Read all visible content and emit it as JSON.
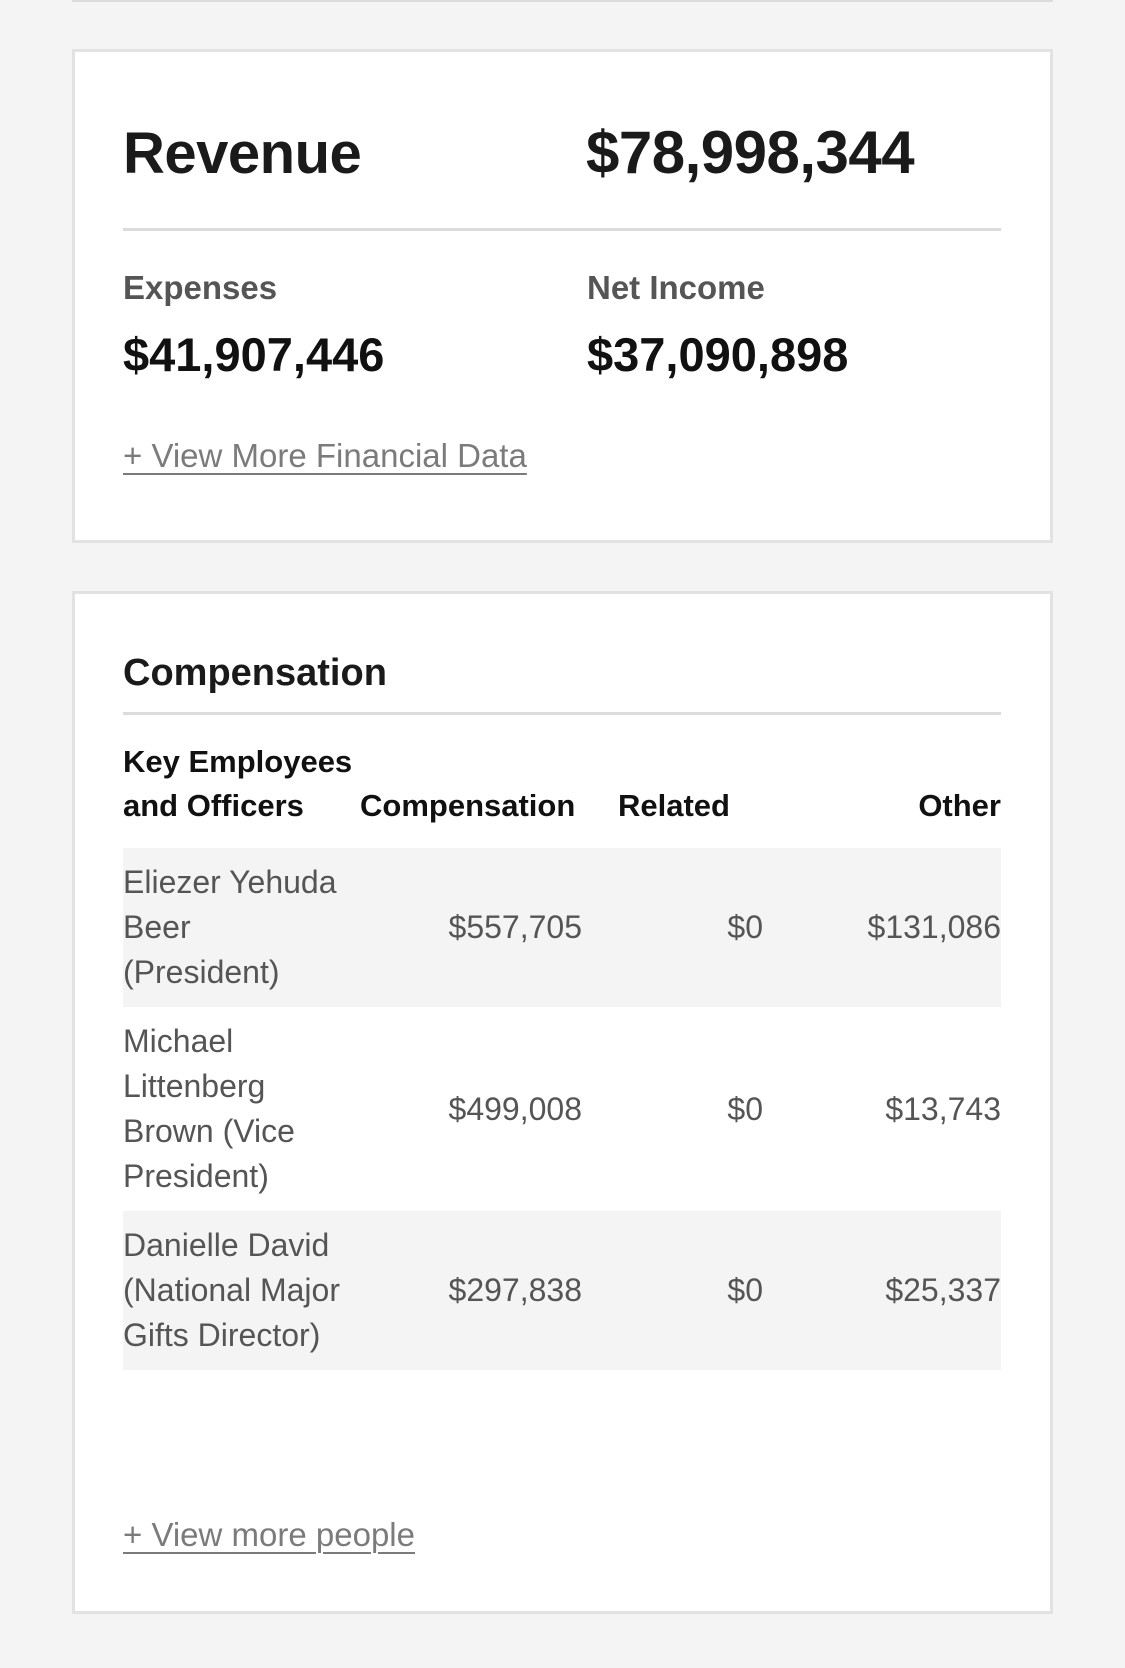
{
  "financials": {
    "revenue_label": "Revenue",
    "revenue_value": "$78,998,344",
    "expenses_label": "Expenses",
    "expenses_value": "$41,907,446",
    "net_income_label": "Net Income",
    "net_income_value": "$37,090,898",
    "more_link": "+ View More Financial Data"
  },
  "compensation": {
    "title": "Compensation",
    "columns": {
      "people": "Key Employees and Officers",
      "compensation": "Compensation",
      "related": "Related",
      "other": "Other"
    },
    "rows": [
      {
        "name": "Eliezer Yehuda Beer (President)",
        "compensation": "$557,705",
        "related": "$0",
        "other": "$131,086"
      },
      {
        "name": "Michael Littenberg Brown (Vice President)",
        "compensation": "$499,008",
        "related": "$0",
        "other": "$13,743"
      },
      {
        "name": "Danielle David (National Major Gifts Director)",
        "compensation": "$297,838",
        "related": "$0",
        "other": "$25,337"
      }
    ],
    "more_link": "+ View more people"
  }
}
